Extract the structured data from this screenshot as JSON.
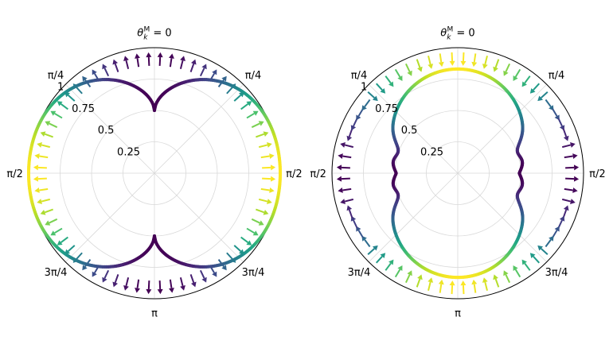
{
  "chart_data": [
    {
      "type": "polar",
      "panel": "left",
      "radial_ticks": [
        "0.25",
        "0.5",
        "0.75",
        "1"
      ],
      "radial_tick_values": [
        0.25,
        0.5,
        0.75,
        1.0
      ],
      "angular_ticks": [
        {
          "angle_deg": 0,
          "label": "θ",
          "sub": "k",
          "sup": "M",
          "suffix": " = 0"
        },
        {
          "angle_deg": 45,
          "label": "π/4"
        },
        {
          "angle_deg": 90,
          "label": "π/2"
        },
        {
          "angle_deg": 135,
          "label": "3π/4"
        },
        {
          "angle_deg": 180,
          "label": "π"
        },
        {
          "angle_deg": 225,
          "label": "3π/4"
        },
        {
          "angle_deg": 270,
          "label": "π/2"
        },
        {
          "angle_deg": 315,
          "label": "π/4"
        }
      ],
      "rmax": 1.0,
      "curve": {
        "description": "r(θ) two-lobed horizontal peanut",
        "r_min": 0.5,
        "r_max": 1.0,
        "at_0": 0.52,
        "at_45": 0.93,
        "at_90": 1.0
      },
      "arrows": {
        "count": 64,
        "direction": "radial-parallel field",
        "colormap": "viridis"
      },
      "grid": true
    },
    {
      "type": "polar",
      "panel": "right",
      "radial_ticks": [
        "0.25",
        "0.5",
        "0.75",
        "1"
      ],
      "radial_tick_values": [
        0.25,
        0.5,
        0.75,
        1.0
      ],
      "angular_ticks": [
        {
          "angle_deg": 0,
          "label": "θ",
          "sub": "k",
          "sup": "M",
          "suffix": " = 0"
        },
        {
          "angle_deg": 45,
          "label": "π/4"
        },
        {
          "angle_deg": 90,
          "label": "π/2"
        },
        {
          "angle_deg": 135,
          "label": "3π/4"
        },
        {
          "angle_deg": 180,
          "label": "π"
        },
        {
          "angle_deg": 225,
          "label": "3π/4"
        },
        {
          "angle_deg": 270,
          "label": "π/2"
        },
        {
          "angle_deg": 315,
          "label": "π/4"
        }
      ],
      "rmax": 1.0,
      "curve": {
        "description": "r(θ) vertically elongated lobe",
        "at_0": 0.83,
        "at_45": 0.55,
        "at_90": 0.42
      },
      "arrows": {
        "count": 64,
        "direction": "tangential-rotating field",
        "colormap": "viridis"
      },
      "grid": true
    }
  ],
  "colors": {
    "viridis_low": "#440154",
    "viridis_mid_low": "#3b528b",
    "viridis_mid": "#21918c",
    "viridis_mid_high": "#5ec962",
    "viridis_high": "#fde725",
    "grid": "#d9d9d9",
    "axis": "#000000"
  }
}
